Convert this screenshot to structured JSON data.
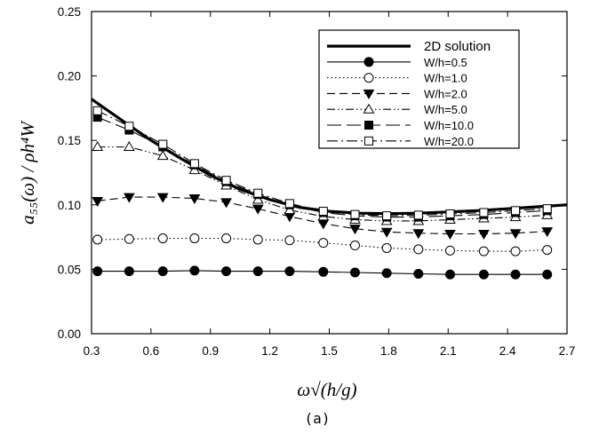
{
  "chart_data": {
    "type": "line",
    "xlabel": "ω√(h/g)",
    "ylabel": "a₅₅(ω) / ρh⁴W",
    "caption": "(a)",
    "xlim": [
      0.3,
      2.7
    ],
    "ylim": [
      0.0,
      0.25
    ],
    "x_ticks": [
      "0.3",
      "0.6",
      "0.9",
      "1.2",
      "1.5",
      "1.8",
      "2.1",
      "2.4",
      "2.7"
    ],
    "y_ticks": [
      "0.00",
      "0.05",
      "0.10",
      "0.15",
      "0.20",
      "0.25"
    ],
    "grid": false,
    "legend_position": "top-right",
    "series": [
      {
        "name": "2D solution",
        "style": "solid-thick",
        "marker": "none",
        "x": [
          0.3,
          0.45,
          0.6,
          0.75,
          0.9,
          1.05,
          1.2,
          1.35,
          1.5,
          1.65,
          1.8,
          1.95,
          2.1,
          2.25,
          2.4,
          2.55,
          2.7
        ],
        "y": [
          0.182,
          0.166,
          0.15,
          0.136,
          0.123,
          0.112,
          0.104,
          0.098,
          0.095,
          0.0935,
          0.0932,
          0.0935,
          0.0945,
          0.0955,
          0.097,
          0.0985,
          0.1
        ]
      },
      {
        "name": "W/h=0.5",
        "style": "solid",
        "marker": "filled-circle",
        "x": [
          0.33,
          0.49,
          0.66,
          0.82,
          0.98,
          1.14,
          1.3,
          1.47,
          1.63,
          1.79,
          1.95,
          2.11,
          2.28,
          2.44,
          2.6
        ],
        "y": [
          0.0485,
          0.0485,
          0.0485,
          0.049,
          0.0485,
          0.0485,
          0.0485,
          0.048,
          0.0475,
          0.047,
          0.0465,
          0.046,
          0.046,
          0.046,
          0.046
        ]
      },
      {
        "name": "W/h=1.0",
        "style": "dotted",
        "marker": "open-circle",
        "x": [
          0.33,
          0.49,
          0.66,
          0.82,
          0.98,
          1.14,
          1.3,
          1.47,
          1.63,
          1.79,
          1.95,
          2.11,
          2.28,
          2.44,
          2.6
        ],
        "y": [
          0.073,
          0.0735,
          0.074,
          0.074,
          0.074,
          0.073,
          0.0725,
          0.0705,
          0.0685,
          0.0665,
          0.0655,
          0.0645,
          0.064,
          0.064,
          0.065
        ]
      },
      {
        "name": "W/h=2.0",
        "style": "dash",
        "marker": "filled-triangle-down",
        "x": [
          0.33,
          0.49,
          0.66,
          0.82,
          0.98,
          1.14,
          1.3,
          1.47,
          1.63,
          1.79,
          1.95,
          2.11,
          2.28,
          2.44,
          2.6
        ],
        "y": [
          0.103,
          0.106,
          0.106,
          0.105,
          0.102,
          0.097,
          0.091,
          0.0855,
          0.0815,
          0.079,
          0.078,
          0.0775,
          0.0775,
          0.078,
          0.0795
        ]
      },
      {
        "name": "W/h=5.0",
        "style": "dash-dot-dot",
        "marker": "open-triangle-up",
        "x": [
          0.33,
          0.49,
          0.66,
          0.82,
          0.98,
          1.14,
          1.3,
          1.47,
          1.63,
          1.79,
          1.95,
          2.11,
          2.28,
          2.44,
          2.6
        ],
        "y": [
          0.145,
          0.145,
          0.138,
          0.127,
          0.115,
          0.104,
          0.096,
          0.091,
          0.0885,
          0.0875,
          0.0875,
          0.0885,
          0.0895,
          0.0905,
          0.092
        ]
      },
      {
        "name": "W/h=10.0",
        "style": "long-dash",
        "marker": "filled-square",
        "x": [
          0.33,
          0.49,
          0.66,
          0.82,
          0.98,
          1.14,
          1.3,
          1.47,
          1.63,
          1.79,
          1.95,
          2.11,
          2.28,
          2.44,
          2.6
        ],
        "y": [
          0.168,
          0.158,
          0.145,
          0.131,
          0.118,
          0.108,
          0.1,
          0.094,
          0.0915,
          0.0905,
          0.0905,
          0.0915,
          0.0925,
          0.094,
          0.0955
        ]
      },
      {
        "name": "W/h=20.0",
        "style": "dash-dot",
        "marker": "open-square",
        "x": [
          0.33,
          0.49,
          0.66,
          0.82,
          0.98,
          1.14,
          1.3,
          1.47,
          1.63,
          1.79,
          1.95,
          2.11,
          2.28,
          2.44,
          2.6
        ],
        "y": [
          0.173,
          0.161,
          0.147,
          0.132,
          0.119,
          0.109,
          0.101,
          0.095,
          0.0925,
          0.0915,
          0.092,
          0.093,
          0.094,
          0.0955,
          0.097
        ]
      }
    ]
  }
}
